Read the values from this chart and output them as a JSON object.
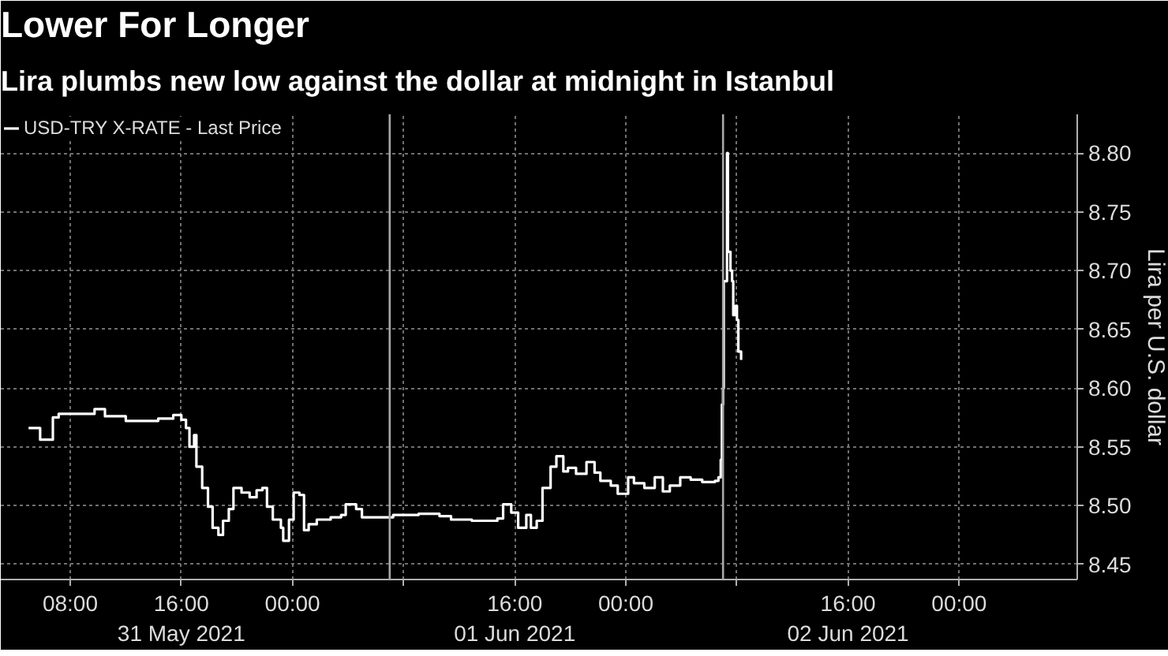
{
  "chart_data": {
    "type": "step",
    "title": "Lower For Longer",
    "subtitle": "Lira plumbs new low against the dollar at midnight in Istanbul",
    "ylabel": "Lira per U.S. dollar",
    "x": [
      "2021-05-31T05:00",
      "2021-05-31T05:50",
      "2021-05-31T06:45",
      "2021-05-31T07:10",
      "2021-05-31T09:45",
      "2021-05-31T10:30",
      "2021-05-31T12:00",
      "2021-05-31T14:20",
      "2021-05-31T15:25",
      "2021-05-31T16:00",
      "2021-05-31T16:20",
      "2021-05-31T16:35",
      "2021-05-31T16:55",
      "2021-05-31T17:05",
      "2021-05-31T17:30",
      "2021-05-31T17:55",
      "2021-05-31T18:15",
      "2021-05-31T18:40",
      "2021-05-31T19:00",
      "2021-05-31T19:25",
      "2021-05-31T19:45",
      "2021-05-31T20:20",
      "2021-05-31T20:55",
      "2021-05-31T21:25",
      "2021-05-31T21:50",
      "2021-05-31T22:10",
      "2021-05-31T22:35",
      "2021-05-31T23:10",
      "2021-05-31T23:20",
      "2021-05-31T23:45",
      "2021-06-01T00:05",
      "2021-06-01T00:30",
      "2021-06-01T00:50",
      "2021-06-01T01:10",
      "2021-06-01T01:45",
      "2021-06-01T02:45",
      "2021-06-01T03:30",
      "2021-06-01T03:50",
      "2021-06-01T04:35",
      "2021-06-01T05:00",
      "2021-06-01T07:15",
      "2021-06-01T09:05",
      "2021-06-01T10:35",
      "2021-06-01T11:25",
      "2021-06-01T12:55",
      "2021-06-01T14:45",
      "2021-06-01T15:10",
      "2021-06-01T15:45",
      "2021-06-01T16:15",
      "2021-06-01T16:50",
      "2021-06-01T17:10",
      "2021-06-01T17:35",
      "2021-06-01T18:00",
      "2021-06-01T18:35",
      "2021-06-01T19:00",
      "2021-06-01T19:30",
      "2021-06-01T19:50",
      "2021-06-01T20:25",
      "2021-06-01T21:10",
      "2021-06-01T21:45",
      "2021-06-01T22:10",
      "2021-06-01T22:55",
      "2021-06-01T23:25",
      "2021-06-02T00:10",
      "2021-06-02T00:35",
      "2021-06-02T01:20",
      "2021-06-02T02:05",
      "2021-06-02T02:40",
      "2021-06-02T03:10",
      "2021-06-02T03:55",
      "2021-06-02T04:40",
      "2021-06-02T05:30",
      "2021-06-02T06:25",
      "2021-06-02T06:40",
      "2021-06-02T06:50",
      "2021-06-02T06:55",
      "2021-06-02T07:00",
      "2021-06-02T07:03",
      "2021-06-02T07:17",
      "2021-06-02T07:21",
      "2021-06-02T07:32",
      "2021-06-02T07:39",
      "2021-06-02T07:44",
      "2021-06-02T07:54",
      "2021-06-02T08:00",
      "2021-06-02T08:06",
      "2021-06-02T08:18"
    ],
    "series": [
      {
        "name": "USD-TRY X-RATE - Last Price",
        "color": "#ffffff",
        "values": [
          8.566,
          8.556,
          8.575,
          8.578,
          8.582,
          8.576,
          8.572,
          8.574,
          8.577,
          8.573,
          8.566,
          8.55,
          8.56,
          8.533,
          8.515,
          8.499,
          8.481,
          8.475,
          8.487,
          8.497,
          8.515,
          8.511,
          8.507,
          8.513,
          8.515,
          8.499,
          8.488,
          8.481,
          8.47,
          8.488,
          8.511,
          8.509,
          8.479,
          8.484,
          8.488,
          8.49,
          8.492,
          8.501,
          8.497,
          8.49,
          8.492,
          8.493,
          8.491,
          8.488,
          8.487,
          8.489,
          8.501,
          8.494,
          8.481,
          8.492,
          8.481,
          8.487,
          8.515,
          8.533,
          8.542,
          8.529,
          8.532,
          8.527,
          8.537,
          8.528,
          8.521,
          8.517,
          8.51,
          8.524,
          8.519,
          8.515,
          8.524,
          8.512,
          8.517,
          8.524,
          8.522,
          8.52,
          8.521,
          8.524,
          8.539,
          8.586,
          8.6,
          8.691,
          8.8,
          8.716,
          8.7,
          8.691,
          8.662,
          8.67,
          8.658,
          8.631,
          8.624
        ]
      }
    ],
    "xlim": [
      "2021-05-31T03:00",
      "2021-06-03T08:30"
    ],
    "ylim": [
      8.437,
      8.833
    ],
    "xticks": [
      {
        "value": "2021-05-31T08:00",
        "label": "08:00"
      },
      {
        "value": "2021-05-31T16:00",
        "label": "16:00\n31 May 2021"
      },
      {
        "value": "2021-06-01T00:00",
        "label": "00:00"
      },
      {
        "value": "2021-06-01T08:00",
        "label": null
      },
      {
        "value": "2021-06-01T16:00",
        "label": "16:00\n01 Jun 2021"
      },
      {
        "value": "2021-06-02T00:00",
        "label": "00:00"
      },
      {
        "value": "2021-06-02T08:00",
        "label": null
      },
      {
        "value": "2021-06-02T16:00",
        "label": "16:00\n02 Jun 2021"
      },
      {
        "value": "2021-06-03T00:00",
        "label": "00:00"
      }
    ],
    "yticks": [
      8.45,
      {
        "value": 8.5,
        "label": "8.50"
      },
      8.55,
      {
        "value": 8.6,
        "label": "8.60"
      },
      8.65,
      {
        "value": 8.7,
        "label": "8.70"
      },
      8.75,
      {
        "value": 8.8,
        "label": "8.80"
      }
    ],
    "grid": true,
    "legend": "top left",
    "ref_lines": [
      {
        "axis": "x",
        "value": "2021-06-01T07:00",
        "color": "#a8a8a8",
        "line_style": "solid"
      },
      {
        "axis": "x",
        "value": "2021-06-02T07:00",
        "color": "#a8a8a8",
        "line_style": "solid"
      }
    ]
  }
}
